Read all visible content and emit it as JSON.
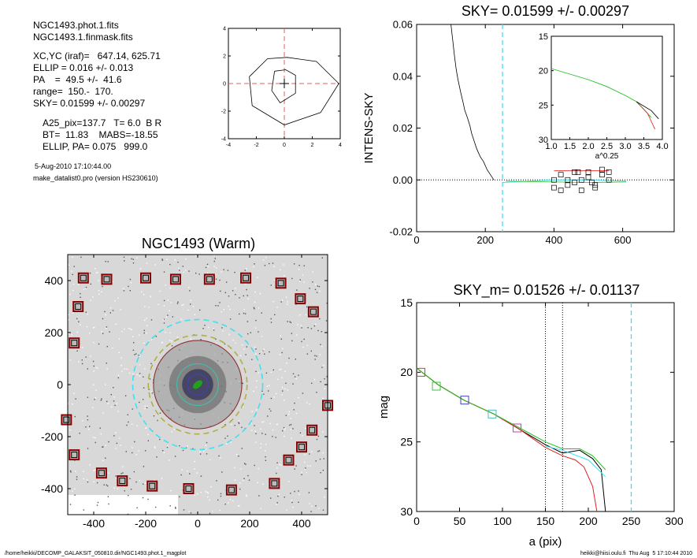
{
  "info": {
    "files": [
      "NGC1493.phot.1.fits",
      "NGC1493.1.finmask.fits"
    ],
    "params": [
      "XC,YC (iraf)=   647.14, 625.71",
      "ELLIP = 0.016 +/- 0.013",
      "PA    =  49.5 +/-  41.6",
      "range=  150.-  170.",
      "SKY= 0.01599 +/- 0.00297"
    ],
    "results": [
      "A25_pix=137.7   T= 6.0  B R",
      "BT=  11.83    MABS=-18.55",
      "ELLIP, PA= 0.075   999.0"
    ],
    "date": "5-Aug-2010 17:10:44.00",
    "program": "make_datalist0.pro (version HS230610)"
  },
  "footer": {
    "left": "/home/heikki/DECOMP_GALAKSIT_050810.dir/NGC1493.phot.1_magplot",
    "right": "heikki@hiisi.oulu.fi  Thu Aug  5 17:10:44 2010"
  },
  "colors": {
    "dash_red": "#e06060",
    "dash_cyan": "#40e0f0",
    "square_red": "#8b0000"
  },
  "chart_data": [
    {
      "id": "centroid",
      "type": "line",
      "xlim": [
        -4,
        4
      ],
      "ylim": [
        -4,
        4
      ],
      "x_ticks": [
        "-4",
        "-2",
        "0",
        "2",
        "4"
      ],
      "y_ticks": [
        "-4",
        "-2",
        "0",
        "2",
        "4"
      ],
      "series": [
        {
          "points": [
            [
              -2.5,
              0.5
            ],
            [
              -1.2,
              1.8
            ],
            [
              0.2,
              1.9
            ],
            [
              2.3,
              1.6
            ],
            [
              3.9,
              0
            ],
            [
              2.6,
              -2.1
            ],
            [
              0,
              -3
            ],
            [
              -2.3,
              -1.6
            ],
            [
              -2.5,
              0.5
            ]
          ]
        },
        {
          "points": [
            [
              -0.7,
              0.9
            ],
            [
              0.1,
              1.0
            ],
            [
              0.8,
              0.6
            ],
            [
              0.8,
              -0.7
            ],
            [
              -0.3,
              -1.4
            ],
            [
              -0.9,
              -0.5
            ],
            [
              -0.7,
              0.9
            ]
          ]
        }
      ],
      "crosshair": [
        0,
        0
      ]
    },
    {
      "id": "sky",
      "type": "line",
      "title": "SKY= 0.01599 +/- 0.00297",
      "ylabel": "INTENS-SKY",
      "xlim": [
        0,
        750
      ],
      "ylim": [
        -0.02,
        0.06
      ],
      "x_ticks": [
        "0",
        "200",
        "400",
        "600"
      ],
      "y_ticks": [
        "-0.02",
        "0.00",
        "0.02",
        "0.04",
        "0.06"
      ],
      "vline": 250,
      "profile": [
        [
          100,
          0.06
        ],
        [
          105,
          0.054
        ],
        [
          110,
          0.048
        ],
        [
          115,
          0.043
        ],
        [
          120,
          0.039
        ],
        [
          128,
          0.034
        ],
        [
          135,
          0.03
        ],
        [
          140,
          0.027
        ],
        [
          148,
          0.024
        ],
        [
          155,
          0.021
        ],
        [
          160,
          0.018
        ],
        [
          170,
          0.014
        ],
        [
          175,
          0.012
        ],
        [
          185,
          0.009
        ],
        [
          195,
          0.007
        ],
        [
          205,
          0.004
        ],
        [
          215,
          0.002
        ],
        [
          225,
          0.0
        ]
      ],
      "squares": [
        [
          400,
          -0.003
        ],
        [
          420,
          -0.004
        ],
        [
          440,
          -0.002
        ],
        [
          460,
          -0.001
        ],
        [
          480,
          0.0
        ],
        [
          500,
          0.001
        ],
        [
          520,
          -0.002
        ],
        [
          540,
          0.002
        ],
        [
          420,
          0.002
        ],
        [
          460,
          0.003
        ],
        [
          500,
          0.003
        ],
        [
          540,
          0.004
        ],
        [
          560,
          0.003
        ],
        [
          480,
          -0.004
        ],
        [
          520,
          -0.003
        ],
        [
          440,
          0.0
        ],
        [
          400,
          0.0
        ],
        [
          560,
          0.0
        ],
        [
          470,
          0.003
        ],
        [
          510,
          -0.001
        ]
      ],
      "inset": {
        "xlabel": "a^0.25",
        "xlim": [
          1.0,
          4.0
        ],
        "ylim": [
          15,
          30
        ],
        "x_ticks": [
          "1.0",
          "1.5",
          "2.0",
          "2.5",
          "3.0",
          "3.5",
          "4.0"
        ],
        "y_ticks": [
          "15",
          "20",
          "25",
          "30"
        ],
        "curve": [
          [
            1.0,
            19.7
          ],
          [
            1.5,
            20.5
          ],
          [
            2.0,
            21.3
          ],
          [
            2.5,
            22.3
          ],
          [
            3.0,
            23.6
          ],
          [
            3.3,
            24.5
          ],
          [
            3.5,
            25.6
          ],
          [
            3.7,
            26.8
          ]
        ]
      }
    },
    {
      "id": "image",
      "type": "scatter",
      "title": "NGC1493 (Warm)",
      "xlim": [
        -500,
        500
      ],
      "ylim": [
        -500,
        500
      ],
      "x_ticks": [
        "-400",
        "-200",
        "0",
        "200",
        "400"
      ],
      "y_ticks": [
        "-400",
        "-200",
        "0",
        "200",
        "400"
      ],
      "ellipses": [
        {
          "r": 250,
          "color": "#40e0f0",
          "dash": true
        },
        {
          "r": 170,
          "color": "#8b3030",
          "dash": false
        },
        {
          "r": 190,
          "color": "#b0b040",
          "dash": true
        },
        {
          "r": 80,
          "color": "#40c0b0",
          "dash": false
        },
        {
          "r": 40,
          "color": "#4040c0",
          "dash": false
        }
      ],
      "mask_squares": [
        [
          -440,
          410
        ],
        [
          -350,
          405
        ],
        [
          -200,
          410
        ],
        [
          -85,
          405
        ],
        [
          45,
          405
        ],
        [
          185,
          410
        ],
        [
          320,
          390
        ],
        [
          395,
          330
        ],
        [
          445,
          280
        ],
        [
          -460,
          300
        ],
        [
          -475,
          160
        ],
        [
          -505,
          -135
        ],
        [
          -475,
          -270
        ],
        [
          -370,
          -340
        ],
        [
          -290,
          -370
        ],
        [
          -175,
          -390
        ],
        [
          -35,
          -400
        ],
        [
          130,
          -405
        ],
        [
          295,
          -380
        ],
        [
          350,
          -290
        ],
        [
          400,
          -240
        ],
        [
          440,
          -175
        ],
        [
          500,
          -80
        ]
      ]
    },
    {
      "id": "mag",
      "type": "line",
      "title": "SKY_m=  0.01526 +/- 0.01137",
      "xlabel": "a (pix)",
      "ylabel": "mag",
      "xlim": [
        0,
        300
      ],
      "ylim": [
        15,
        30
      ],
      "x_ticks": [
        "0",
        "50",
        "100",
        "150",
        "200",
        "250",
        "300"
      ],
      "y_ticks": [
        "15",
        "20",
        "25",
        "30"
      ],
      "vlines_dotted": [
        150,
        170
      ],
      "vline_dashed": 250,
      "series": [
        {
          "color": "#000000",
          "values": [
            [
              0,
              19.7
            ],
            [
              25,
              20.9
            ],
            [
              55,
              22.0
            ],
            [
              90,
              23.0
            ],
            [
              120,
              24.1
            ],
            [
              150,
              25.2
            ],
            [
              170,
              25.8
            ],
            [
              190,
              25.6
            ],
            [
              205,
              26.2
            ],
            [
              215,
              27.0
            ],
            [
              220,
              30
            ]
          ]
        },
        {
          "color": "#e02020",
          "values": [
            [
              0,
              19.7
            ],
            [
              25,
              20.9
            ],
            [
              55,
              22.0
            ],
            [
              90,
              23.0
            ],
            [
              120,
              24.1
            ],
            [
              150,
              25.4
            ],
            [
              170,
              26.0
            ],
            [
              185,
              26.3
            ],
            [
              195,
              26.8
            ],
            [
              205,
              28.2
            ],
            [
              210,
              30
            ]
          ]
        },
        {
          "color": "#20c020",
          "values": [
            [
              0,
              19.7
            ],
            [
              25,
              20.9
            ],
            [
              55,
              22.0
            ],
            [
              90,
              23.0
            ],
            [
              120,
              24.0
            ],
            [
              150,
              25.0
            ],
            [
              170,
              25.5
            ],
            [
              190,
              25.5
            ],
            [
              205,
              26.0
            ],
            [
              220,
              27.0
            ]
          ]
        },
        {
          "color": "#40e0f0",
          "values": [
            [
              150,
              25.3
            ],
            [
              170,
              25.6
            ],
            [
              200,
              26.3
            ],
            [
              220,
              27.5
            ]
          ]
        }
      ],
      "markers": [
        {
          "x": 5,
          "y": 20.0,
          "color": "#c04040"
        },
        {
          "x": 23,
          "y": 21.0,
          "color": "#40c040"
        },
        {
          "x": 56,
          "y": 22.0,
          "color": "#4040c0"
        },
        {
          "x": 88,
          "y": 23.0,
          "color": "#40c0c0"
        },
        {
          "x": 117,
          "y": 24.0,
          "color": "#c040c0"
        }
      ]
    }
  ]
}
